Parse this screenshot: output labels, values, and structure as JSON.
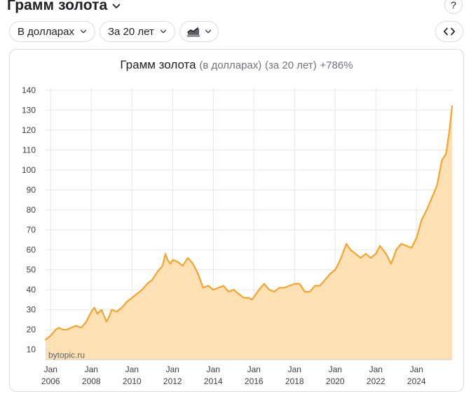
{
  "header": {
    "title": "Грамм золота",
    "help_label": "?"
  },
  "controls": {
    "currency_label": "В долларах",
    "period_label": "За 20 лет",
    "chart_style_icon": "area-chart-icon",
    "expand_icon": "code-brackets-icon"
  },
  "chart_card": {
    "title_main": "Грамм золота",
    "title_unit": "(в долларах)",
    "title_period": "(за 20 лет)",
    "title_change": "+786%",
    "watermark": "bytopic.ru"
  },
  "colors": {
    "line": "#f2a534",
    "fill": "#fde0b3",
    "grid": "#e6e6e6"
  },
  "chart_data": {
    "type": "area",
    "title": "Грамм золота (в долларах) (за 20 лет) +786%",
    "xlabel": "",
    "ylabel": "",
    "ylim": [
      5,
      141
    ],
    "xlim": [
      2005.75,
      2025.75
    ],
    "grid": true,
    "yticks": [
      10,
      20,
      30,
      40,
      50,
      60,
      70,
      80,
      90,
      100,
      110,
      120,
      130,
      140
    ],
    "xticks": [
      {
        "value": 2006,
        "top": "Jan",
        "bottom": "2006"
      },
      {
        "value": 2008,
        "top": "Jan",
        "bottom": "2008"
      },
      {
        "value": 2010,
        "top": "Jan",
        "bottom": "2010"
      },
      {
        "value": 2012,
        "top": "Jan",
        "bottom": "2012"
      },
      {
        "value": 2014,
        "top": "Jan",
        "bottom": "2014"
      },
      {
        "value": 2016,
        "top": "Jan",
        "bottom": "2016"
      },
      {
        "value": 2018,
        "top": "Jan",
        "bottom": "2018"
      },
      {
        "value": 2020,
        "top": "Jan",
        "bottom": "2020"
      },
      {
        "value": 2022,
        "top": "Jan",
        "bottom": "2022"
      },
      {
        "value": 2024,
        "top": "Jan",
        "bottom": "2024"
      }
    ],
    "x": [
      2005.75,
      2006.0,
      2006.25,
      2006.4,
      2006.6,
      2006.8,
      2007.0,
      2007.25,
      2007.5,
      2007.75,
      2008.0,
      2008.15,
      2008.3,
      2008.5,
      2008.75,
      2008.9,
      2009.0,
      2009.25,
      2009.5,
      2009.75,
      2010.0,
      2010.25,
      2010.5,
      2010.75,
      2011.0,
      2011.25,
      2011.5,
      2011.65,
      2011.75,
      2011.9,
      2012.0,
      2012.25,
      2012.5,
      2012.75,
      2013.0,
      2013.25,
      2013.5,
      2013.75,
      2014.0,
      2014.25,
      2014.5,
      2014.75,
      2015.0,
      2015.25,
      2015.5,
      2015.75,
      2015.9,
      2016.25,
      2016.5,
      2016.75,
      2017.0,
      2017.25,
      2017.5,
      2017.75,
      2018.0,
      2018.25,
      2018.5,
      2018.75,
      2019.0,
      2019.25,
      2019.5,
      2019.75,
      2020.0,
      2020.25,
      2020.55,
      2020.75,
      2021.0,
      2021.25,
      2021.5,
      2021.75,
      2022.0,
      2022.2,
      2022.5,
      2022.75,
      2023.0,
      2023.25,
      2023.5,
      2023.75,
      2024.0,
      2024.25,
      2024.5,
      2024.75,
      2025.0,
      2025.25,
      2025.45,
      2025.6,
      2025.75
    ],
    "series": [
      {
        "values": [
          15,
          17,
          20,
          21,
          20,
          20,
          21,
          22,
          21,
          24,
          29,
          31,
          28,
          30,
          24,
          27,
          30,
          29,
          31,
          34,
          36,
          38,
          40,
          43,
          45,
          49,
          52,
          58,
          55,
          53,
          55,
          54,
          52,
          56,
          53,
          48,
          41,
          42,
          40,
          41,
          42,
          39,
          40,
          38,
          36,
          36,
          35,
          40,
          43,
          40,
          39,
          41,
          41,
          42,
          43,
          43,
          39,
          39,
          42,
          42,
          45,
          48,
          50,
          55,
          63,
          60,
          58,
          56,
          58,
          56,
          58,
          62,
          58,
          53,
          60,
          63,
          62,
          61,
          66,
          75,
          80,
          86,
          92,
          105,
          108,
          118,
          132
        ]
      }
    ]
  }
}
